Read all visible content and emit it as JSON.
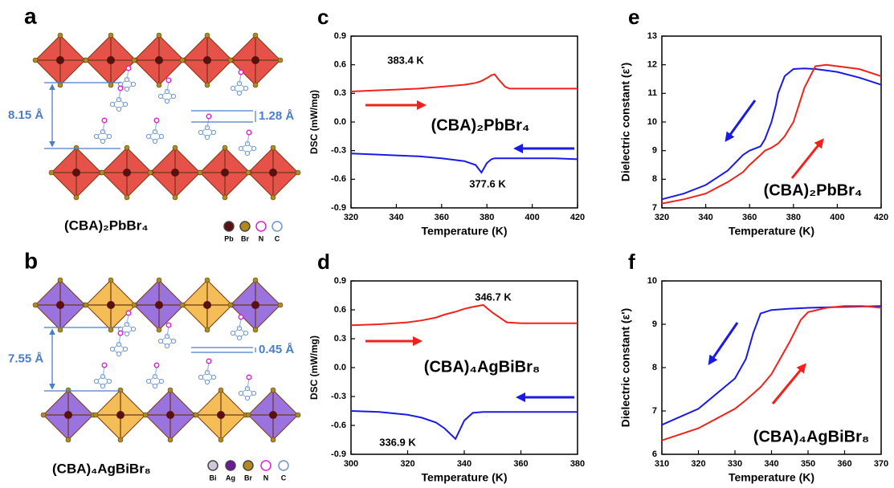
{
  "structures": {
    "a": {
      "label": "a",
      "interlayer": "8.15 Å",
      "offset": "1.28 Å",
      "formula": "(CBA)₂PbBr₄",
      "legend": [
        "Pb",
        "Br",
        "N",
        "C"
      ]
    },
    "b": {
      "label": "b",
      "interlayer": "7.55 Å",
      "offset": "0.45 Å",
      "formula": "(CBA)₄AgBiBr₈",
      "legend": [
        "Bi",
        "Ag",
        "Br",
        "N",
        "C"
      ]
    }
  },
  "chart_data": [
    {
      "type": "line",
      "panel_label": "c",
      "xlabel": "Temperature (K)",
      "ylabel": "DSC (mW/mg)",
      "x": [
        320,
        330,
        340,
        350,
        360,
        370,
        375,
        377.6,
        380,
        382,
        383.4,
        385,
        388,
        390,
        400,
        410,
        420
      ],
      "series": [
        {
          "color": "#f0221b",
          "values": [
            0.32,
            0.33,
            0.34,
            0.35,
            0.37,
            0.39,
            0.41,
            0.43,
            0.46,
            0.49,
            0.5,
            0.45,
            0.37,
            0.35,
            0.35,
            0.35,
            0.35
          ]
        },
        {
          "color": "#1a1ae6",
          "values": [
            -0.33,
            -0.34,
            -0.35,
            -0.36,
            -0.38,
            -0.41,
            -0.45,
            -0.53,
            -0.43,
            -0.39,
            -0.38,
            -0.38,
            -0.38,
            -0.38,
            -0.38,
            -0.38,
            -0.39
          ]
        }
      ],
      "xlim": [
        320,
        420
      ],
      "xticks": [
        320,
        340,
        360,
        380,
        400,
        420
      ],
      "ylim": [
        -0.9,
        0.9
      ],
      "yticks": [
        -0.9,
        -0.6,
        -0.3,
        {
          "value": 0,
          "label": "0.0"
        },
        0.3,
        0.6,
        0.9
      ],
      "annotations": [
        "383.4 K",
        "377.6 K",
        "(CBA)₂PbBr₄"
      ]
    },
    {
      "type": "line",
      "panel_label": "d",
      "xlabel": "Temperature (K)",
      "ylabel": "DSC (mW/mg)",
      "x": [
        300,
        310,
        320,
        325,
        330,
        333,
        336.9,
        340,
        343,
        346.7,
        350,
        355,
        360,
        370,
        380
      ],
      "series": [
        {
          "color": "#f0221b",
          "values": [
            0.44,
            0.45,
            0.47,
            0.49,
            0.52,
            0.55,
            0.58,
            0.61,
            0.63,
            0.65,
            0.57,
            0.47,
            0.46,
            0.46,
            0.46
          ]
        },
        {
          "color": "#1a1ae6",
          "values": [
            -0.45,
            -0.46,
            -0.49,
            -0.52,
            -0.57,
            -0.63,
            -0.74,
            -0.55,
            -0.47,
            -0.46,
            -0.46,
            -0.46,
            -0.46,
            -0.46,
            -0.46
          ]
        }
      ],
      "xlim": [
        300,
        380
      ],
      "xticks": [
        300,
        320,
        340,
        360,
        380
      ],
      "ylim": [
        -0.9,
        0.9
      ],
      "yticks": [
        -0.9,
        -0.6,
        -0.3,
        {
          "value": 0,
          "label": "0.0"
        },
        0.3,
        0.6,
        0.9
      ],
      "annotations": [
        "346.7 K",
        "336.9 K",
        "(CBA)₄AgBiBr₈"
      ]
    },
    {
      "type": "line",
      "panel_label": "e",
      "xlabel": "Temperature (K)",
      "ylabel": "Dielectric constant (ε')",
      "x": [
        320,
        330,
        340,
        350,
        357,
        360,
        365,
        367,
        370,
        372,
        373,
        376,
        380,
        385,
        390,
        395,
        400,
        410,
        420
      ],
      "series": [
        {
          "color": "#1a1ae6",
          "values": [
            7.3,
            7.5,
            7.8,
            8.3,
            8.85,
            9.0,
            9.15,
            9.4,
            10.0,
            10.6,
            11.0,
            11.6,
            11.85,
            11.87,
            11.85,
            11.8,
            11.75,
            11.55,
            11.3
          ]
        },
        {
          "color": "#f0221b",
          "values": [
            7.15,
            7.3,
            7.5,
            7.9,
            8.25,
            8.5,
            8.85,
            9.0,
            9.1,
            9.2,
            9.25,
            9.5,
            10.0,
            11.2,
            11.95,
            12.0,
            11.95,
            11.85,
            11.6
          ]
        }
      ],
      "xlim": [
        320,
        420
      ],
      "xticks": [
        320,
        340,
        360,
        380,
        400,
        420
      ],
      "ylim": [
        7,
        13
      ],
      "yticks": [
        7,
        8,
        9,
        10,
        11,
        12,
        13
      ],
      "annotations": [
        "(CBA)₂PbBr₄"
      ]
    },
    {
      "type": "line",
      "panel_label": "f",
      "xlabel": "Temperature (K)",
      "ylabel": "Dielectric constant (ε')",
      "x": [
        310,
        320,
        330,
        333,
        335,
        337,
        340,
        345,
        348,
        350,
        355,
        360,
        365,
        370
      ],
      "series": [
        {
          "color": "#1a1ae6",
          "values": [
            6.68,
            7.05,
            7.75,
            8.2,
            8.8,
            9.25,
            9.33,
            9.36,
            9.37,
            9.38,
            9.39,
            9.4,
            9.41,
            9.42
          ]
        },
        {
          "color": "#f0221b",
          "values": [
            6.32,
            6.6,
            7.05,
            7.25,
            7.4,
            7.55,
            7.85,
            8.6,
            9.1,
            9.28,
            9.38,
            9.42,
            9.42,
            9.38
          ]
        }
      ],
      "xlim": [
        310,
        370
      ],
      "xticks": [
        310,
        320,
        330,
        340,
        350,
        360,
        370
      ],
      "ylim": [
        6,
        10
      ],
      "yticks": [
        6,
        7,
        8,
        9,
        10
      ],
      "annotations": [
        "(CBA)₄AgBiBr₈"
      ]
    }
  ]
}
